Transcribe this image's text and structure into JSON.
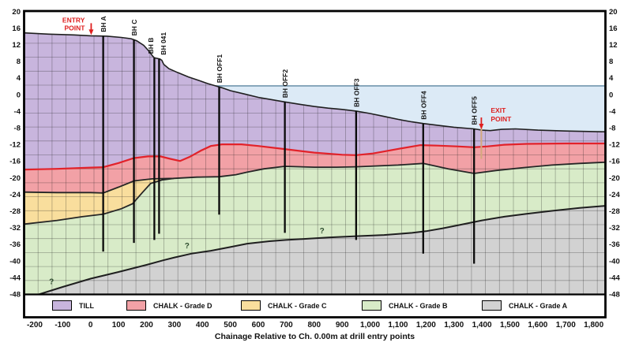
{
  "chart_data": {
    "type": "area",
    "subtype": "geological-cross-section",
    "xlabel": "Chainage Relative to Ch. 0.00m at drill entry points",
    "x_range": [
      -238,
      1842
    ],
    "y_range": [
      -48.1,
      20.05
    ],
    "x_ticks": {
      "values": [
        -200,
        -100,
        0,
        100,
        200,
        300,
        400,
        500,
        600,
        700,
        800,
        900,
        1000,
        1100,
        1200,
        1300,
        1400,
        1500,
        1600,
        1700,
        1800
      ],
      "labels": [
        "-200",
        "-100",
        "0",
        "100",
        "200",
        "300",
        "400",
        "500",
        "600",
        "700",
        "800",
        "900",
        "1,000",
        "1,100",
        "1,200",
        "1,300",
        "1,400",
        "1,500",
        "1,600",
        "1,700",
        "1,800"
      ]
    },
    "y_ticks": [
      20,
      16,
      12,
      8,
      4,
      0,
      -4,
      -8,
      -12,
      -16,
      -20,
      -24,
      -28,
      -32,
      -36,
      -40,
      -44,
      -48
    ],
    "water_level": 2.05,
    "water_start_chainage": 448,
    "boundaries": {
      "ground_surface": [
        [
          -240,
          14.8
        ],
        [
          -150,
          14.5
        ],
        [
          -60,
          14.3
        ],
        [
          0,
          14.1
        ],
        [
          60,
          14.0
        ],
        [
          110,
          13.7
        ],
        [
          145,
          13.4
        ],
        [
          165,
          12.9
        ],
        [
          190,
          11.8
        ],
        [
          210,
          10.3
        ],
        [
          222,
          9.2
        ],
        [
          228,
          8.8
        ],
        [
          248,
          8.5
        ],
        [
          255,
          8.2
        ],
        [
          262,
          7.2
        ],
        [
          280,
          6.2
        ],
        [
          310,
          5.3
        ],
        [
          350,
          4.2
        ],
        [
          390,
          3.3
        ],
        [
          420,
          2.6
        ],
        [
          448,
          2.05
        ],
        [
          470,
          1.6
        ],
        [
          500,
          0.9
        ],
        [
          550,
          0.1
        ],
        [
          600,
          -0.7
        ],
        [
          650,
          -1.3
        ],
        [
          695,
          -1.8
        ],
        [
          750,
          -2.4
        ],
        [
          800,
          -2.9
        ],
        [
          850,
          -3.3
        ],
        [
          900,
          -3.6
        ],
        [
          950,
          -4.0
        ],
        [
          1000,
          -4.6
        ],
        [
          1050,
          -5.3
        ],
        [
          1100,
          -6.0
        ],
        [
          1150,
          -6.6
        ],
        [
          1190,
          -7.0
        ],
        [
          1250,
          -7.5
        ],
        [
          1300,
          -7.9
        ],
        [
          1372,
          -8.3
        ],
        [
          1400,
          -8.6
        ],
        [
          1430,
          -8.7
        ],
        [
          1470,
          -8.4
        ],
        [
          1520,
          -8.3
        ],
        [
          1600,
          -8.6
        ],
        [
          1700,
          -8.8
        ],
        [
          1841,
          -9.0
        ]
      ],
      "till_base_top_grade_d": [
        [
          -240,
          -18.1
        ],
        [
          -120,
          -17.9
        ],
        [
          0,
          -17.6
        ],
        [
          45,
          -17.5
        ],
        [
          100,
          -16.5
        ],
        [
          155,
          -15.3
        ],
        [
          205,
          -14.9
        ],
        [
          250,
          -14.9
        ],
        [
          285,
          -15.5
        ],
        [
          320,
          -16.0
        ],
        [
          355,
          -15.0
        ],
        [
          395,
          -13.5
        ],
        [
          430,
          -12.4
        ],
        [
          470,
          -12.0
        ],
        [
          540,
          -12.0
        ],
        [
          600,
          -12.4
        ],
        [
          700,
          -13.2
        ],
        [
          800,
          -14.0
        ],
        [
          900,
          -14.5
        ],
        [
          950,
          -14.6
        ],
        [
          1010,
          -14.2
        ],
        [
          1100,
          -13.1
        ],
        [
          1180,
          -12.2
        ],
        [
          1240,
          -12.3
        ],
        [
          1310,
          -12.5
        ],
        [
          1372,
          -12.7
        ],
        [
          1420,
          -12.5
        ],
        [
          1480,
          -12.1
        ],
        [
          1560,
          -11.9
        ],
        [
          1700,
          -11.8
        ],
        [
          1841,
          -11.8
        ]
      ],
      "base_grade_d": [
        [
          -240,
          -23.5
        ],
        [
          -120,
          -23.6
        ],
        [
          0,
          -23.6
        ],
        [
          45,
          -23.7
        ],
        [
          100,
          -22.3
        ],
        [
          155,
          -20.8
        ],
        [
          220,
          -20.3
        ],
        [
          297,
          -20.2
        ],
        [
          380,
          -19.9
        ],
        [
          460,
          -19.8
        ],
        [
          520,
          -19.3
        ],
        [
          560,
          -18.7
        ],
        [
          620,
          -17.9
        ],
        [
          695,
          -17.3
        ],
        [
          800,
          -17.5
        ],
        [
          880,
          -17.5
        ],
        [
          950,
          -17.4
        ],
        [
          1100,
          -17.0
        ],
        [
          1190,
          -16.6
        ],
        [
          1280,
          -17.9
        ],
        [
          1372,
          -19.0
        ],
        [
          1450,
          -18.3
        ],
        [
          1550,
          -17.6
        ],
        [
          1650,
          -17.0
        ],
        [
          1750,
          -16.6
        ],
        [
          1841,
          -16.3
        ]
      ],
      "base_grade_c": [
        [
          -240,
          -31.2
        ],
        [
          -120,
          -30.3
        ],
        [
          -30,
          -29.4
        ],
        [
          45,
          -28.8
        ],
        [
          110,
          -27.5
        ],
        [
          150,
          -26.3
        ],
        [
          185,
          -23.6
        ],
        [
          215,
          -21.4
        ],
        [
          255,
          -20.6
        ],
        [
          297,
          -20.2
        ]
      ],
      "grade_c_pinchout_chainage": 297,
      "top_grade_a": [
        [
          -240,
          -48.8
        ],
        [
          -190,
          -48.2
        ],
        [
          -100,
          -46.3
        ],
        [
          0,
          -44.3
        ],
        [
          100,
          -42.7
        ],
        [
          200,
          -41.0
        ],
        [
          260,
          -39.9
        ],
        [
          300,
          -39.2
        ],
        [
          360,
          -38.3
        ],
        [
          430,
          -37.6
        ],
        [
          500,
          -36.7
        ],
        [
          560,
          -35.9
        ],
        [
          640,
          -35.3
        ],
        [
          700,
          -35.0
        ],
        [
          780,
          -34.7
        ],
        [
          850,
          -34.4
        ],
        [
          950,
          -34.1
        ],
        [
          1050,
          -33.8
        ],
        [
          1150,
          -33.3
        ],
        [
          1200,
          -32.9
        ],
        [
          1260,
          -32.2
        ],
        [
          1320,
          -31.4
        ],
        [
          1400,
          -30.3
        ],
        [
          1480,
          -29.4
        ],
        [
          1560,
          -28.7
        ],
        [
          1650,
          -28.0
        ],
        [
          1750,
          -27.3
        ],
        [
          1841,
          -26.8
        ]
      ]
    },
    "boreholes": [
      {
        "name": "BH A",
        "chainage": 45,
        "bottom": -37.8,
        "label_dx": 0
      },
      {
        "name": "BH C",
        "chainage": 155,
        "bottom": -35.7,
        "label_dx": 0
      },
      {
        "name": "BH B",
        "chainage": 228,
        "bottom": -35.0,
        "label_dx": -5
      },
      {
        "name": "BH 041",
        "chainage": 245,
        "bottom": -33.5,
        "label_dx": 5
      },
      {
        "name": "BH OFF1",
        "chainage": 460,
        "bottom": -28.9,
        "label_dx": 0
      },
      {
        "name": "BH OFF2",
        "chainage": 695,
        "bottom": -33.3,
        "label_dx": 0
      },
      {
        "name": "BH OFF3",
        "chainage": 950,
        "bottom": -35.0,
        "label_dx": 0
      },
      {
        "name": "BH OFF4",
        "chainage": 1190,
        "bottom": -38.3,
        "label_dx": 0
      },
      {
        "name": "BH OFF5",
        "chainage": 1372,
        "bottom": -40.7,
        "label_dx": 0
      }
    ],
    "question_marks": [
      {
        "chainage": -140,
        "elev": -45.6
      },
      {
        "chainage": 345,
        "elev": -37.0
      },
      {
        "chainage": 828,
        "elev": -33.4
      }
    ],
    "annotations": {
      "entry_point": {
        "lines": [
          "ENTRY",
          "POINT"
        ],
        "chainage": 2
      },
      "exit_point": {
        "lines": [
          "EXIT",
          "POINT"
        ],
        "chainage": 1398,
        "stem_bottom_elev": -15.5
      }
    },
    "legend": [
      {
        "label": "TILL",
        "color": "#C8B5DD"
      },
      {
        "label": "CHALK - Grade D",
        "color": "#F2A1A6"
      },
      {
        "label": "CHALK - Grade C",
        "color": "#F9DE9D"
      },
      {
        "label": "CHALK - Grade B",
        "color": "#D8EBC8"
      },
      {
        "label": "CHALK - Grade A",
        "color": "#D2D2D2"
      }
    ],
    "colors": {
      "till": "#C8B5DD",
      "grade_d": "#F2A1A6",
      "grade_c": "#F9DE9D",
      "grade_b": "#D8EBC8",
      "grade_a": "#D2D2D2",
      "water_fill": "#DCEAF6",
      "water_line": "#7396AE",
      "red_boundary": "#E2222A",
      "dark_boundary": "#262626",
      "borehole": "#0A0A0A",
      "annotation_red": "#DE1F1F",
      "exit_stem_tan": "#D4A97E",
      "question_mark": "#2E4D2E"
    }
  }
}
